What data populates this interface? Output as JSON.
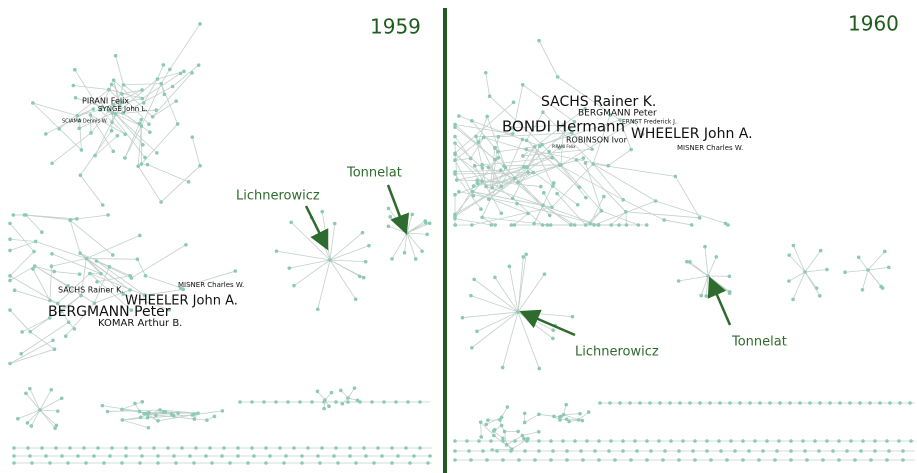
{
  "panels": [
    {
      "year": "1959",
      "labels": [
        "PIRANI Felix",
        "SYNGE John L.",
        "SCIAMA Dennis W.",
        "SACHS Rainer K.",
        "MISNER Charles W.",
        "WHEELER John A.",
        "BERGMANN Peter",
        "KOMAR Arthur B."
      ],
      "annotations": [
        "Lichnerowicz",
        "Tonnelat"
      ]
    },
    {
      "year": "1960",
      "labels": [
        "SACHS Rainer K.",
        "BERGMANN Peter",
        "ERNST Frederick J.",
        "BONDI Hermann",
        "WHEELER John A.",
        "ROBINSON Ivor",
        "MISNER Charles W.",
        "PIRANI Felix"
      ],
      "annotations": [
        "Lichnerowicz",
        "Tonnelat"
      ]
    }
  ]
}
